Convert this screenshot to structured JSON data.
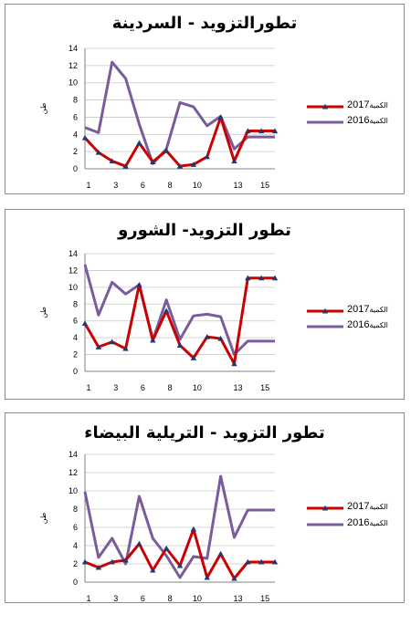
{
  "panels": [
    {
      "title": "تطورالتزويد - السردينة",
      "legend": [
        {
          "year": "2017",
          "label": "الكمية"
        },
        {
          "year": "2016",
          "label": "الكمية"
        }
      ],
      "ylabel": "طن"
    },
    {
      "title": "تطور التزويد- الشورو",
      "legend": [
        {
          "year": "2017",
          "label": "الكمية"
        },
        {
          "year": "2016",
          "label": "الكمية"
        }
      ],
      "ylabel": "طن"
    },
    {
      "title": "تطور التزويد - التريلية البيضاء",
      "legend": [
        {
          "year": "2017",
          "label": "الكمية"
        },
        {
          "year": "2016",
          "label": "الكمية"
        }
      ],
      "ylabel": "طن"
    }
  ],
  "colors": {
    "series_2017": "#cc0000",
    "series_2016": "#7a5c9c",
    "marker": "#1f3b6e",
    "axis": "#808080",
    "grid": "#c8c8c8"
  },
  "chart_data": [
    {
      "type": "line",
      "title": "تطورالتزويد - السردينة",
      "ylabel": "طن",
      "x": [
        1,
        2,
        3,
        4,
        5,
        6,
        7,
        8,
        9,
        10,
        11,
        12,
        13,
        14,
        15
      ],
      "xticks": [
        "1",
        "3",
        "6",
        "8",
        "10",
        "13",
        "15"
      ],
      "xtick_positions": [
        1,
        3,
        5,
        7,
        9,
        12,
        14
      ],
      "yticks": [
        "0",
        "2",
        "4",
        "6",
        "8",
        "10",
        "12",
        "14"
      ],
      "ylim": [
        0,
        14
      ],
      "grid": true,
      "legend_position": "right",
      "series": [
        {
          "name": "2017 الكمية",
          "values": [
            3.6,
            1.9,
            0.9,
            0.3,
            3.0,
            0.8,
            2.1,
            0.3,
            0.5,
            1.4,
            6.0,
            0.9,
            4.4,
            4.4,
            4.4
          ],
          "marker": "triangle"
        },
        {
          "name": "2016 الكمية",
          "values": [
            4.8,
            4.2,
            12.4,
            10.5,
            5.2,
            0.6,
            2.3,
            7.7,
            7.2,
            5.0,
            6.1,
            2.3,
            3.7,
            3.7,
            3.7
          ],
          "marker": "none"
        }
      ]
    },
    {
      "type": "line",
      "title": "تطور التزويد- الشورو",
      "ylabel": "طن",
      "x": [
        1,
        2,
        3,
        4,
        5,
        6,
        7,
        8,
        9,
        10,
        11,
        12,
        13,
        14,
        15
      ],
      "xticks": [
        "1",
        "3",
        "6",
        "8",
        "10",
        "13",
        "15"
      ],
      "xtick_positions": [
        1,
        3,
        5,
        7,
        9,
        12,
        14
      ],
      "yticks": [
        "0",
        "2",
        "4",
        "6",
        "8",
        "10",
        "12",
        "14"
      ],
      "ylim": [
        0,
        14
      ],
      "grid": true,
      "legend_position": "right",
      "series": [
        {
          "name": "2017 الكمية",
          "values": [
            5.7,
            2.9,
            3.5,
            2.7,
            10.3,
            3.7,
            7.2,
            3.1,
            1.6,
            4.1,
            3.9,
            0.9,
            11.1,
            11.1,
            11.1
          ],
          "marker": "triangle"
        },
        {
          "name": "2016 الكمية",
          "values": [
            12.7,
            6.7,
            10.6,
            9.2,
            10.3,
            3.7,
            8.5,
            3.8,
            6.6,
            6.8,
            6.5,
            2.0,
            3.6,
            3.6,
            3.6
          ],
          "marker": "none"
        }
      ]
    },
    {
      "type": "line",
      "title": "تطور التزويد - التريلية البيضاء",
      "ylabel": "طن",
      "x": [
        1,
        2,
        3,
        4,
        5,
        6,
        7,
        8,
        9,
        10,
        11,
        12,
        13,
        14,
        15
      ],
      "xticks": [
        "1",
        "3",
        "6",
        "8",
        "10",
        "13",
        "15"
      ],
      "xtick_positions": [
        1,
        3,
        5,
        7,
        9,
        12,
        14
      ],
      "yticks": [
        "0",
        "2",
        "4",
        "6",
        "8",
        "10",
        "12",
        "14"
      ],
      "ylim": [
        0,
        14
      ],
      "grid": true,
      "legend_position": "right",
      "series": [
        {
          "name": "2017 الكمية",
          "values": [
            2.2,
            1.6,
            2.2,
            2.4,
            4.2,
            1.3,
            3.7,
            1.8,
            5.8,
            0.5,
            3.1,
            0.4,
            2.2,
            2.2,
            2.2
          ],
          "marker": "triangle"
        },
        {
          "name": "2016 الكمية",
          "values": [
            9.9,
            2.7,
            4.8,
            2.0,
            9.4,
            4.8,
            2.9,
            0.5,
            2.8,
            2.6,
            11.6,
            4.9,
            7.9,
            7.9,
            7.9
          ],
          "marker": "none"
        }
      ]
    }
  ]
}
